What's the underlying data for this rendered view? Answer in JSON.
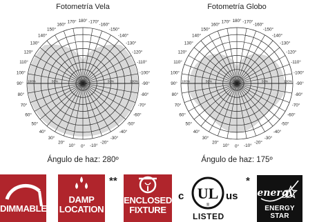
{
  "plots": [
    {
      "title": "Fotometría Vela",
      "beam_label": "Ángulo de haz: 280º",
      "angle_labels": [
        "0°",
        "10°",
        "20°",
        "30°",
        "40°",
        "50°",
        "60°",
        "70°",
        "80°",
        "90°",
        "100°",
        "110°",
        "120°",
        "130°",
        "140°",
        "150°",
        "160°",
        "170°",
        "180°",
        "-170°",
        "-160°",
        "-150°",
        "-140°",
        "-130°",
        "-120°",
        "-110°",
        "-100°",
        "-90°",
        "-80°",
        "-70°",
        "-60°",
        "-50°",
        "-40°",
        "-30°",
        "-20°",
        "-10°"
      ],
      "radial_labels": [
        "100%",
        "50%"
      ],
      "beam_angle": 280
    },
    {
      "title": "Fotometría Globo",
      "beam_label": "Ángulo de haz: 175º",
      "angle_labels": [
        "0°",
        "10°",
        "20°",
        "30°",
        "40°",
        "50°",
        "60°",
        "70°",
        "80°",
        "90°",
        "100°",
        "110°",
        "120°",
        "130°",
        "140°",
        "150°",
        "160°",
        "170°",
        "180°",
        "-170°",
        "-160°",
        "-150°",
        "-140°",
        "-130°",
        "-120°",
        "-110°",
        "-100°",
        "-90°",
        "-80°",
        "-70°",
        "-60°",
        "-50°",
        "-40°",
        "-30°",
        "-20°",
        "-10°"
      ],
      "radial_labels": [
        "100%",
        "50%"
      ],
      "beam_angle": 175
    }
  ],
  "badges": {
    "dimmable": "DIMMABLE",
    "damp": [
      "DAMP",
      "LOCATION"
    ],
    "enclosed": [
      "ENCLOSED",
      "FIXTURE"
    ],
    "asterisk_double": "**",
    "asterisk_single": "*",
    "ul_c": "c",
    "ul_mark": "UL",
    "ul_us": "us",
    "ul_listed": "LISTED",
    "ul_r": "®",
    "energy_script": "energy",
    "energy_star": "ENERGY STAR"
  },
  "colors": {
    "badge_red": "#b0252c",
    "fill_gray": "#d9d9d9",
    "grid": "#222222",
    "energy_black": "#111111"
  }
}
